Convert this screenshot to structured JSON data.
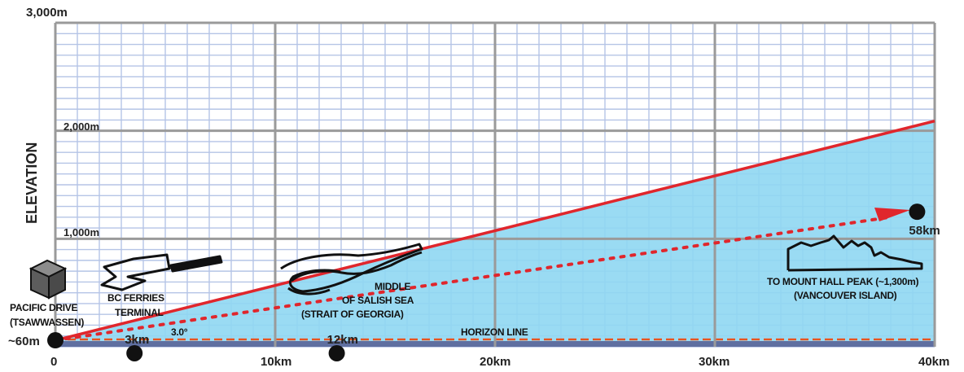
{
  "chart_data": {
    "type": "line",
    "ylabel": "ELEVATION",
    "x_ticks": [
      "0",
      "10km",
      "20km",
      "30km",
      "40km"
    ],
    "y_ticks": [
      "1,000m",
      "2,000m",
      "3,000m"
    ],
    "xlim": [
      0,
      40
    ],
    "ylim": [
      0,
      3000
    ],
    "grid": true,
    "series": [
      {
        "x": [
          0,
          40
        ],
        "y": [
          60,
          2090
        ]
      },
      {
        "x": [
          0,
          39
        ],
        "y": [
          60,
          1250
        ]
      }
    ],
    "angle_label": "3.0°",
    "horizon_label": "HORIZON LINE",
    "markers": [
      {
        "label": "~60m",
        "x": 0,
        "y": 60
      },
      {
        "label": "3km",
        "x": 3.6,
        "y": -60
      },
      {
        "label": "12km",
        "x": 12.8,
        "y": -60
      },
      {
        "label": "58km",
        "x": 39.2,
        "y": 1250
      }
    ],
    "annotations": [
      {
        "lines": [
          "PACIFIC DRIVE",
          "(TSAWWASSEN)"
        ]
      },
      {
        "lines": [
          "BC FERRIES",
          "TERMINAL"
        ]
      },
      {
        "lines": [
          "MIDDLE",
          "OF SALISH SEA",
          "(STRAIT OF GEORGIA)"
        ]
      },
      {
        "lines": [
          "TO MOUNT HALL PEAK (~1,300m)",
          "(VANCOUVER ISLAND)"
        ]
      }
    ],
    "colors": {
      "sea": "#8fd7f2",
      "sightline": "#e0262c",
      "horizon_band": "#5f6fa0",
      "horizon_line": "#e85420",
      "grid_major": "#9a9a9a",
      "grid_minor": "#b5c4e6"
    }
  }
}
